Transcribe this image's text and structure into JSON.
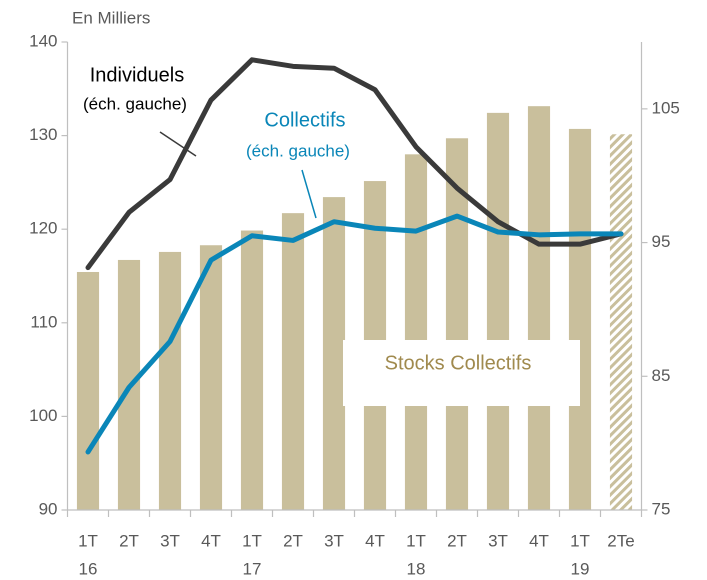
{
  "chart_data": {
    "type": "bar_line",
    "annotations": [
      "En Milliers",
      "(éch. gauche)",
      "(éch. gauche)"
    ],
    "categories": [
      "1T",
      "2T",
      "3T",
      "4T",
      "1T",
      "2T",
      "3T",
      "4T",
      "1T",
      "2T",
      "3T",
      "4T",
      "1T",
      "2Te"
    ],
    "year_labels": [
      "16",
      null,
      null,
      null,
      "17",
      null,
      null,
      null,
      "18",
      null,
      null,
      null,
      "19",
      null
    ],
    "series": [
      {
        "name": "Stocks Collectifs",
        "type": "bar",
        "axis": "y2",
        "color": "#c9bf9c",
        "hatched": [
          false,
          false,
          false,
          false,
          false,
          false,
          false,
          false,
          false,
          false,
          false,
          false,
          false,
          true
        ],
        "values": [
          92.8,
          93.7,
          94.3,
          94.8,
          95.9,
          97.2,
          98.4,
          99.6,
          101.6,
          102.8,
          104.7,
          105.2,
          103.5,
          103.1
        ]
      },
      {
        "name": "Individuels",
        "type": "line",
        "axis": "y",
        "color": "#3a3a3a",
        "values": [
          115.9,
          121.8,
          125.3,
          133.8,
          138.1,
          137.4,
          137.2,
          134.9,
          128.8,
          124.4,
          120.8,
          118.4,
          118.4,
          119.5
        ]
      },
      {
        "name": "Collectifs",
        "type": "line",
        "axis": "y",
        "color": "#0a86b8",
        "values": [
          96.2,
          103.1,
          108.0,
          116.7,
          119.3,
          118.8,
          120.8,
          120.1,
          119.8,
          121.4,
          119.7,
          119.4,
          119.5,
          119.5
        ]
      }
    ],
    "ylim": [
      90,
      140
    ],
    "yticks": [
      90,
      100,
      110,
      120,
      130,
      140
    ],
    "y2lim": [
      75,
      110
    ],
    "y2ticks": [
      75,
      85,
      95,
      105
    ]
  }
}
